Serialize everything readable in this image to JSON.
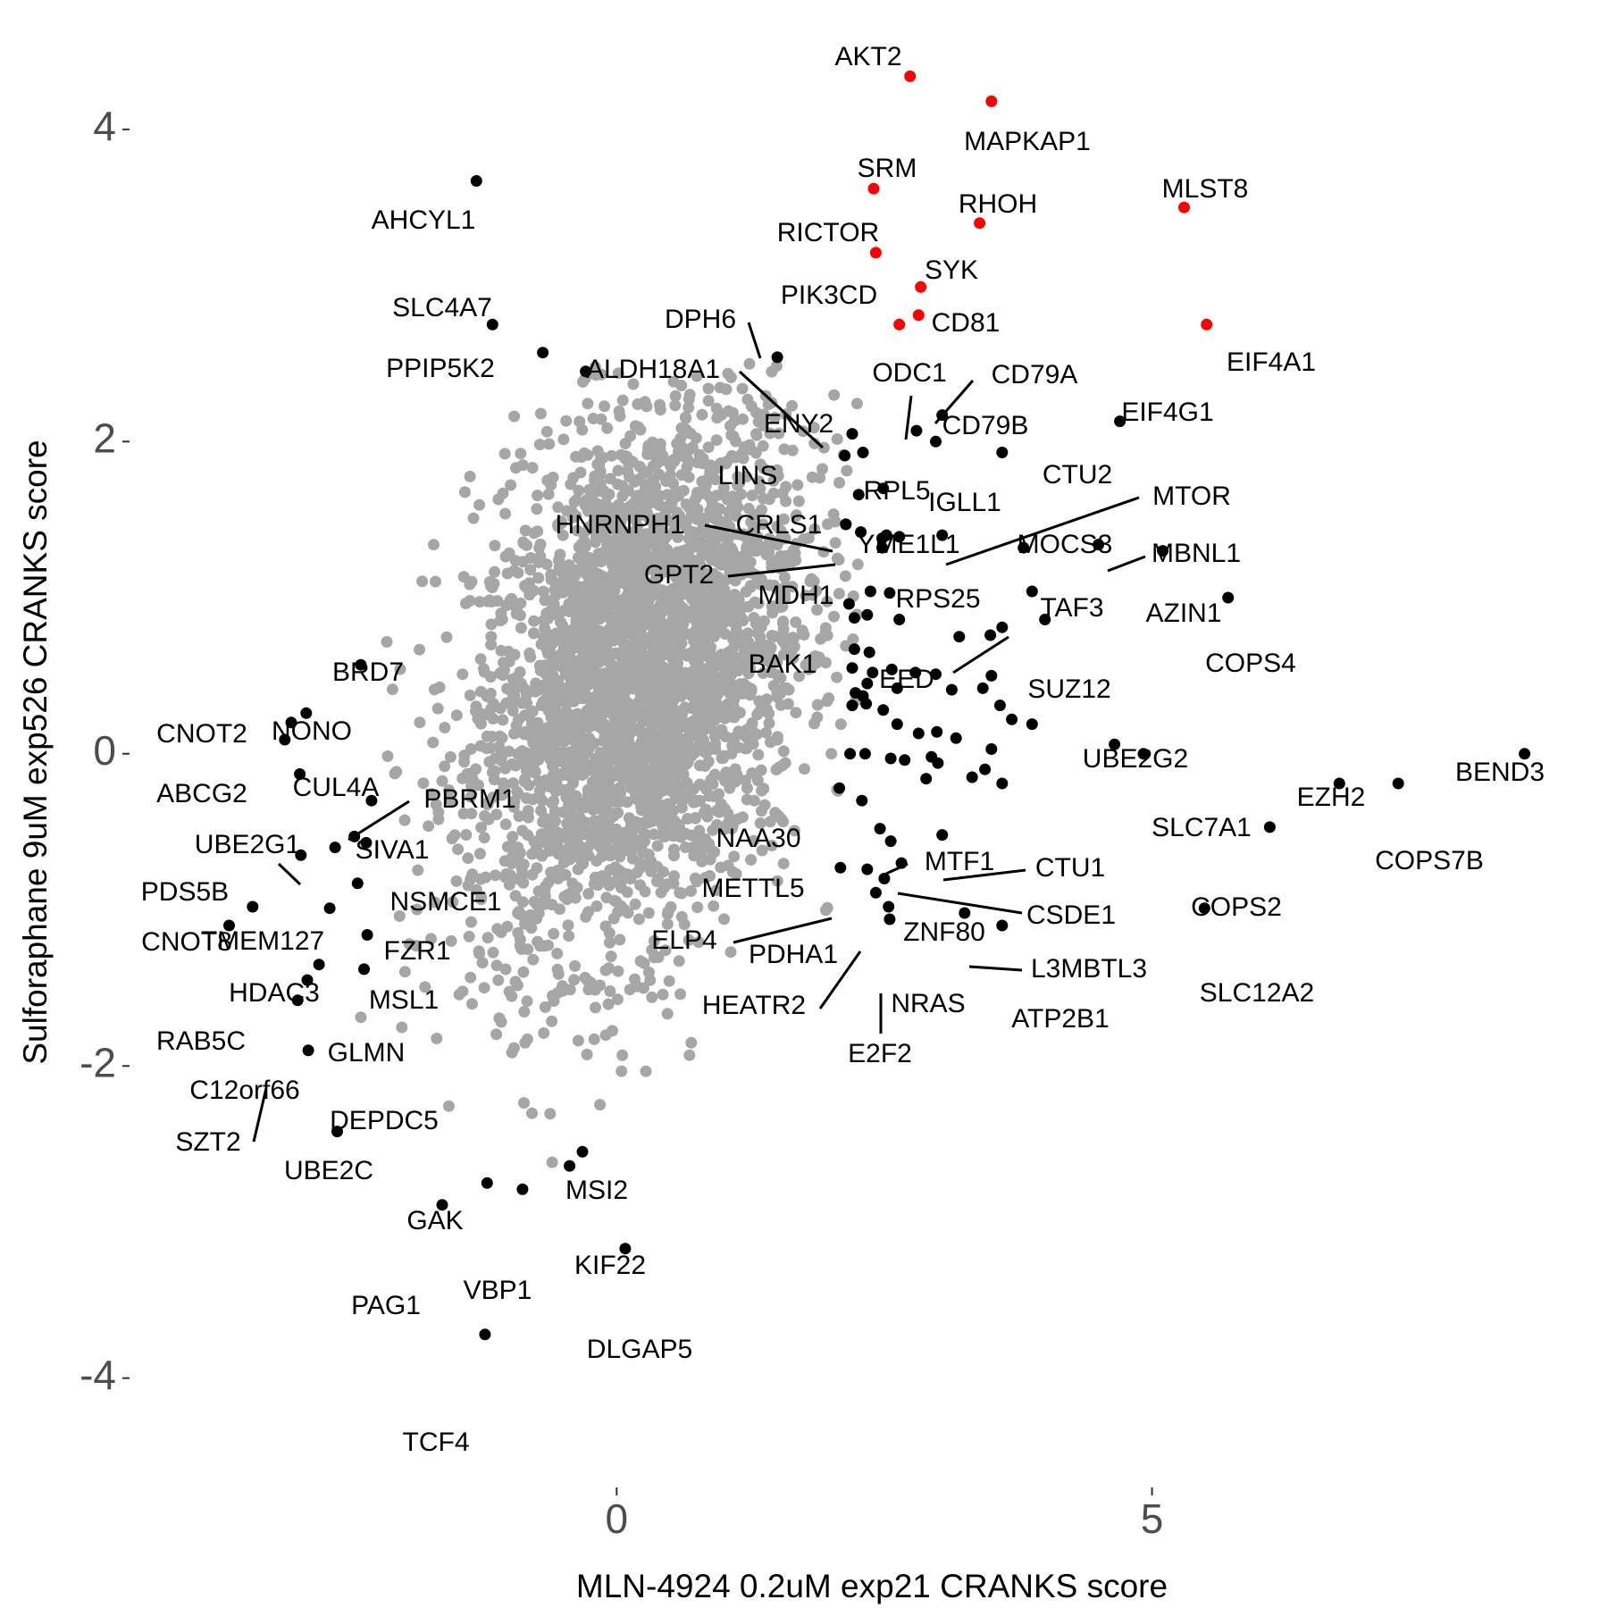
{
  "chart_data": {
    "type": "scatter",
    "xlabel": "MLN-4924 0.2uM exp21 CRANKS score",
    "ylabel": "Sulforaphane 9uM exp526 CRANKS score",
    "xlim": [
      -4.55,
      8.8
    ],
    "ylim": [
      -4.7,
      4.6
    ],
    "x_ticks": [
      0,
      5
    ],
    "x_tick_labels": [
      "0",
      "5"
    ],
    "y_ticks": [
      -4,
      -2,
      0,
      2,
      4
    ],
    "y_tick_labels": [
      "-4",
      "-2",
      "0",
      "2",
      "4"
    ],
    "grid": false,
    "legend": "none",
    "colors": {
      "background_points": "#a6a6a6",
      "highlight_points": "#000000",
      "top_hits": "#ff0000",
      "tick_text": "#4d4d4d",
      "tick_marks": "#333333"
    },
    "background_cloud": {
      "description_free": true,
      "center": [
        0.2,
        0.5
      ],
      "spread": [
        0.78,
        0.88
      ],
      "correlation": 0.32
    },
    "labeled_points": [
      {
        "label": "AKT2",
        "x": 2.74,
        "y": 4.34,
        "color": "red"
      },
      {
        "label": "MAPKAP1",
        "x": 3.5,
        "y": 4.18,
        "color": "red"
      },
      {
        "label": "SRM",
        "x": 2.4,
        "y": 3.62,
        "color": "red"
      },
      {
        "label": "RHOH",
        "x": 3.39,
        "y": 3.4,
        "color": "red"
      },
      {
        "label": "MLST8",
        "x": 5.3,
        "y": 3.5,
        "color": "red"
      },
      {
        "label": "RICTOR",
        "x": 2.42,
        "y": 3.21,
        "color": "red"
      },
      {
        "label": "SYK",
        "x": 2.84,
        "y": 2.99,
        "color": "red"
      },
      {
        "label": "PIK3CD",
        "x": 2.82,
        "y": 2.81,
        "color": "red"
      },
      {
        "label": "CD81",
        "x": 2.64,
        "y": 2.75,
        "color": "red"
      },
      {
        "label": "EIF4A1",
        "x": 5.51,
        "y": 2.75,
        "color": "red"
      },
      {
        "label": "AHCYL1",
        "x": -1.31,
        "y": 3.67,
        "color": "black"
      },
      {
        "label": "SLC4A7",
        "x": -1.16,
        "y": 2.75,
        "color": "black"
      },
      {
        "label": "PPIP5K2",
        "x": -0.69,
        "y": 2.57,
        "color": "black"
      },
      {
        "label": "DPH6",
        "x": 1.5,
        "y": 2.54,
        "color": "black"
      },
      {
        "label": "ALDH18A1",
        "x": -0.29,
        "y": 2.45,
        "color": "black"
      },
      {
        "label": "ODC1",
        "x": 2.8,
        "y": 2.07,
        "color": "black"
      },
      {
        "label": "CD79A",
        "x": 3.04,
        "y": 2.17,
        "color": "black"
      },
      {
        "label": "CD79B",
        "x": 2.98,
        "y": 2.0,
        "color": "black"
      },
      {
        "label": "ENY2",
        "x": 2.2,
        "y": 2.05,
        "color": "black"
      },
      {
        "label": "EIF4G1",
        "x": 4.7,
        "y": 2.13,
        "color": "black"
      },
      {
        "label": "CTU2",
        "x": 3.6,
        "y": 1.93,
        "color": "black"
      },
      {
        "label": "LINS",
        "x": 2.13,
        "y": 1.91,
        "color": "black"
      },
      {
        "label": "RPL5",
        "x": 2.3,
        "y": 1.93,
        "color": "black"
      },
      {
        "label": "IGLL1",
        "x": 2.49,
        "y": 1.7,
        "color": "black"
      },
      {
        "label": "MTOR",
        "x": 3.04,
        "y": 1.4,
        "color": "black"
      },
      {
        "label": "HNRNPH1",
        "x": 2.14,
        "y": 1.47,
        "color": "black"
      },
      {
        "label": "CRLS1",
        "x": 2.28,
        "y": 1.42,
        "color": "black"
      },
      {
        "label": "YME1L1",
        "x": 2.52,
        "y": 1.4,
        "color": "black"
      },
      {
        "label": "GPT2",
        "x": 2.14,
        "y": 1.47,
        "color": "black"
      },
      {
        "label": "MOCS3",
        "x": 3.8,
        "y": 1.32,
        "color": "black"
      },
      {
        "label": "MBNL1",
        "x": 4.5,
        "y": 1.34,
        "color": "black"
      },
      {
        "label": "MDH1",
        "x": 2.48,
        "y": 1.32,
        "color": "black"
      },
      {
        "label": "RPS25",
        "x": 2.55,
        "y": 1.03,
        "color": "black"
      },
      {
        "label": "AZIN1",
        "x": 5.1,
        "y": 1.3,
        "color": "black"
      },
      {
        "label": "TAF3",
        "x": 3.88,
        "y": 1.04,
        "color": "black"
      },
      {
        "label": "COPS4",
        "x": 5.71,
        "y": 1.0,
        "color": "black"
      },
      {
        "label": "BAK1",
        "x": 2.22,
        "y": 0.87,
        "color": "black"
      },
      {
        "label": "EED",
        "x": 3.2,
        "y": 0.75,
        "color": "black"
      },
      {
        "label": "SUZ12",
        "x": 4.0,
        "y": 0.86,
        "color": "black"
      },
      {
        "label": "BRD7",
        "x": -2.39,
        "y": 0.57,
        "color": "black"
      },
      {
        "label": "NONO",
        "x": -2.9,
        "y": 0.26,
        "color": "black"
      },
      {
        "label": "CNOT2",
        "x": -3.04,
        "y": 0.2,
        "color": "black"
      },
      {
        "label": "ABCG2",
        "x": -3.1,
        "y": 0.09,
        "color": "black"
      },
      {
        "label": "CUL4A",
        "x": -2.96,
        "y": -0.13,
        "color": "black"
      },
      {
        "label": "PBRM1",
        "x": -2.29,
        "y": -0.3,
        "color": "black"
      },
      {
        "label": "UBE2G1",
        "x": -2.63,
        "y": -0.6,
        "color": "black"
      },
      {
        "label": "SIVA1",
        "x": -2.45,
        "y": -0.53,
        "color": "black"
      },
      {
        "label": "NSMCE1",
        "x": -2.34,
        "y": -0.57,
        "color": "black"
      },
      {
        "label": "PDS5B",
        "x": -2.95,
        "y": -0.65,
        "color": "black"
      },
      {
        "label": "UBE2G2",
        "x": 4.65,
        "y": 0.06,
        "color": "black"
      },
      {
        "label": "BEND3",
        "x": 8.48,
        "y": 0.0,
        "color": "black"
      },
      {
        "label": "SLC7A1",
        "x": 4.92,
        "y": 0.0,
        "color": "black"
      },
      {
        "label": "EZH2",
        "x": 6.75,
        "y": -0.19,
        "color": "black"
      },
      {
        "label": "COPS7B",
        "x": 7.3,
        "y": -0.19,
        "color": "black"
      },
      {
        "label": "NAA30",
        "x": 2.08,
        "y": -0.22,
        "color": "black"
      },
      {
        "label": "MTF1",
        "x": 2.46,
        "y": -0.48,
        "color": "black"
      },
      {
        "label": "CTU1",
        "x": 3.04,
        "y": -0.52,
        "color": "black"
      },
      {
        "label": "METTL5",
        "x": 2.56,
        "y": -0.56,
        "color": "black"
      },
      {
        "label": "COPS2",
        "x": 6.1,
        "y": -0.47,
        "color": "black"
      },
      {
        "label": "CSDE1",
        "x": 2.66,
        "y": -0.7,
        "color": "black"
      },
      {
        "label": "ELP4",
        "x": 2.09,
        "y": -0.73,
        "color": "black"
      },
      {
        "label": "ZNF80",
        "x": 2.5,
        "y": -0.8,
        "color": "black"
      },
      {
        "label": "PDHA1",
        "x": 2.34,
        "y": -0.74,
        "color": "black"
      },
      {
        "label": "CNOT8",
        "x": -3.62,
        "y": -1.1,
        "color": "black"
      },
      {
        "label": "TMEM127",
        "x": -2.42,
        "y": -0.83,
        "color": "black"
      },
      {
        "label": "FZR1",
        "x": -2.68,
        "y": -0.99,
        "color": "black"
      },
      {
        "label": "HDAC3",
        "x": -3.4,
        "y": -0.98,
        "color": "black"
      },
      {
        "label": "MSL1",
        "x": -2.33,
        "y": -1.16,
        "color": "black"
      },
      {
        "label": "L3MBTL3",
        "x": 3.25,
        "y": -1.02,
        "color": "black"
      },
      {
        "label": "SLC12A2",
        "x": 5.49,
        "y": -0.99,
        "color": "black"
      },
      {
        "label": "HEATR2",
        "x": 2.42,
        "y": -0.89,
        "color": "black"
      },
      {
        "label": "NRAS",
        "x": 2.55,
        "y": -1.06,
        "color": "black"
      },
      {
        "label": "ATP2B1",
        "x": 3.6,
        "y": -1.1,
        "color": "black"
      },
      {
        "label": "E2F2",
        "x": 2.54,
        "y": -0.98,
        "color": "black"
      },
      {
        "label": "RAB5C",
        "x": -2.89,
        "y": -1.45,
        "color": "black"
      },
      {
        "label": "GLMN",
        "x": -2.36,
        "y": -1.38,
        "color": "black"
      },
      {
        "label": "C12orf66",
        "x": -2.78,
        "y": -1.35,
        "color": "black"
      },
      {
        "label": "SZT2",
        "x": -2.98,
        "y": -1.58,
        "color": "black"
      },
      {
        "label": "DEPDC5",
        "x": -2.88,
        "y": -1.9,
        "color": "black"
      },
      {
        "label": "UBE2C",
        "x": -2.61,
        "y": -2.42,
        "color": "black"
      },
      {
        "label": "MSI2",
        "x": -0.32,
        "y": -2.55,
        "color": "black"
      },
      {
        "label": "GAK",
        "x": -1.21,
        "y": -2.75,
        "color": "black"
      },
      {
        "label": "KIF22",
        "x": -0.44,
        "y": -2.64,
        "color": "black"
      },
      {
        "label": "VBP1",
        "x": -0.88,
        "y": -2.79,
        "color": "black"
      },
      {
        "label": "PAG1",
        "x": -1.63,
        "y": -2.89,
        "color": "black"
      },
      {
        "label": "DLGAP5",
        "x": 0.08,
        "y": -3.17,
        "color": "black"
      },
      {
        "label": "TCF4",
        "x": -1.23,
        "y": -3.72,
        "color": "black"
      }
    ],
    "unlabeled_highlight_points": [
      [
        2.26,
        1.66
      ],
      [
        2.64,
        1.39
      ],
      [
        2.48,
        1.38
      ],
      [
        2.37,
        1.04
      ],
      [
        2.17,
        0.96
      ],
      [
        2.64,
        0.86
      ],
      [
        3.49,
        0.76
      ],
      [
        3.6,
        0.81
      ],
      [
        2.34,
        0.89
      ],
      [
        2.22,
        0.67
      ],
      [
        2.36,
        0.65
      ],
      [
        2.2,
        0.55
      ],
      [
        2.39,
        0.52
      ],
      [
        2.57,
        0.54
      ],
      [
        2.79,
        0.52
      ],
      [
        2.98,
        0.51
      ],
      [
        2.34,
        0.45
      ],
      [
        2.23,
        0.39
      ],
      [
        2.3,
        0.37
      ],
      [
        2.62,
        0.42
      ],
      [
        3.5,
        0.5
      ],
      [
        3.13,
        0.41
      ],
      [
        3.42,
        0.42
      ],
      [
        2.2,
        0.31
      ],
      [
        2.33,
        0.32
      ],
      [
        2.49,
        0.28
      ],
      [
        3.58,
        0.31
      ],
      [
        3.69,
        0.22
      ],
      [
        3.88,
        0.19
      ],
      [
        2.62,
        0.19
      ],
      [
        2.99,
        0.14
      ],
      [
        3.17,
        0.1
      ],
      [
        2.82,
        0.13
      ],
      [
        3.5,
        0.03
      ],
      [
        2.18,
        0.0
      ],
      [
        2.32,
        0.0
      ],
      [
        2.56,
        -0.03
      ],
      [
        2.69,
        -0.04
      ],
      [
        2.94,
        -0.02
      ],
      [
        3.44,
        -0.1
      ],
      [
        2.89,
        -0.16
      ],
      [
        3.32,
        -0.15
      ],
      [
        3.6,
        -0.19
      ],
      [
        3.0,
        -0.06
      ],
      [
        2.29,
        -0.3
      ]
    ]
  }
}
